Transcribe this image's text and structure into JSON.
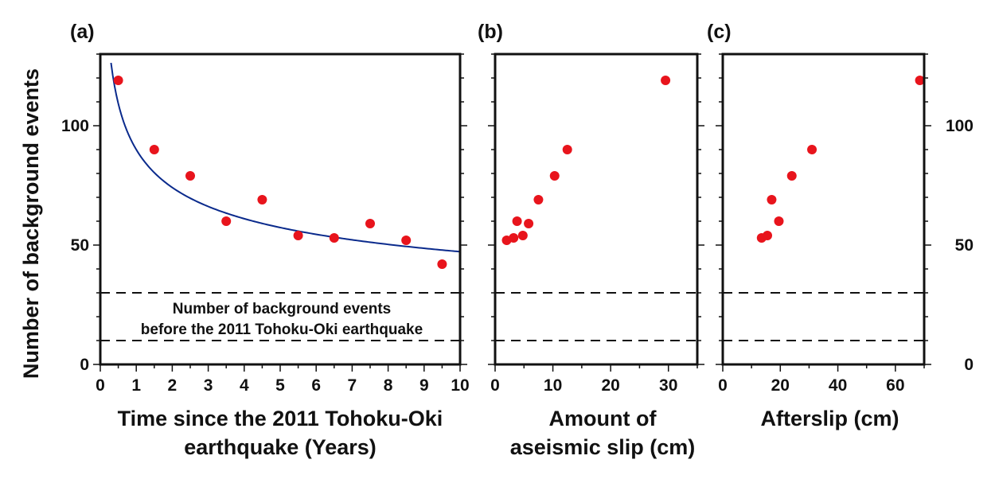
{
  "figure": {
    "ylabel": "Number of background events",
    "colors": {
      "points": "#e8141c",
      "fit": "#0a2a8c",
      "frame": "#111111"
    }
  },
  "chart_data": [
    {
      "type": "scatter",
      "panel_label": "(a)",
      "xlabel_lines": [
        "Time since the 2011 Tohoku-Oki",
        "earthquake (Years)"
      ],
      "ylabel": "Number of background events",
      "xlim": [
        0,
        10
      ],
      "ylim": [
        0,
        130
      ],
      "xticks": [
        0,
        1,
        2,
        3,
        4,
        5,
        6,
        7,
        8,
        9,
        10
      ],
      "yticks": [
        0,
        50,
        100
      ],
      "ytick_side": "left",
      "x": [
        0.5,
        1.5,
        2.5,
        3.5,
        4.5,
        5.5,
        6.5,
        7.5,
        8.5,
        9.5
      ],
      "y": [
        119,
        90,
        79,
        60,
        69,
        54,
        53,
        59,
        52,
        42
      ],
      "fit_curve": {
        "name": "decay fit",
        "formula": "y = 90 * x^-0.28",
        "x_range": [
          0.15,
          10
        ]
      },
      "reference_lines": [
        30,
        10
      ],
      "annotation_lines": [
        "Number of background events",
        "before the 2011 Tohoku-Oki earthquake"
      ]
    },
    {
      "type": "scatter",
      "panel_label": "(b)",
      "xlabel_lines": [
        "Amount of",
        "aseismic slip (cm)"
      ],
      "xlim": [
        0,
        35
      ],
      "ylim": [
        0,
        130
      ],
      "xticks": [
        0,
        10,
        20,
        30
      ],
      "yticks": [
        0,
        50,
        100
      ],
      "ytick_side": "none",
      "x": [
        2.0,
        3.2,
        3.8,
        4.8,
        5.8,
        7.5,
        10.3,
        12.5,
        29.5
      ],
      "y": [
        52,
        53,
        60,
        54,
        59,
        69,
        79,
        90,
        119
      ],
      "reference_lines": [
        30,
        10
      ]
    },
    {
      "type": "scatter",
      "panel_label": "(c)",
      "xlabel_lines": [
        "Afterslip (cm)"
      ],
      "xlim": [
        0,
        70
      ],
      "ylim": [
        0,
        130
      ],
      "xticks": [
        0,
        20,
        40,
        60
      ],
      "yticks": [
        0,
        50,
        100
      ],
      "ytick_side": "right",
      "x": [
        13.5,
        15.5,
        17.0,
        19.5,
        24.0,
        31.0,
        68.5
      ],
      "y": [
        53,
        54,
        69,
        60,
        79,
        90,
        119
      ],
      "reference_lines": [
        30,
        10
      ]
    }
  ]
}
